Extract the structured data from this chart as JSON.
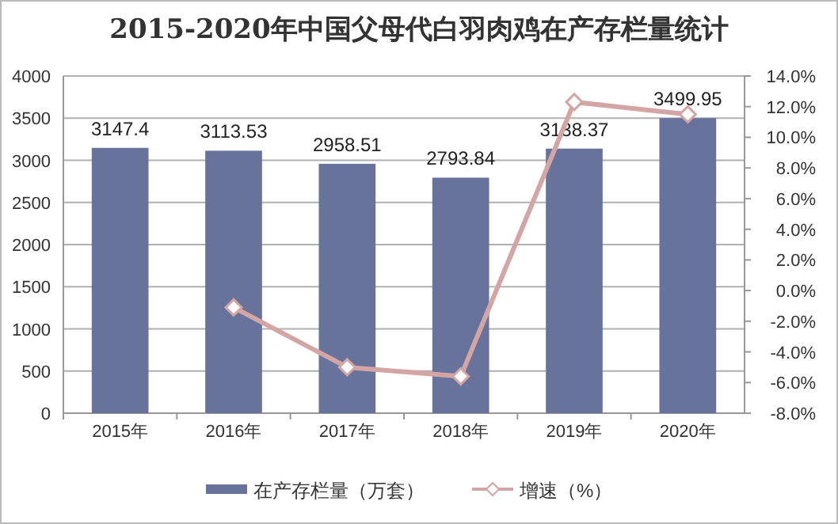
{
  "chart_data": {
    "type": "bar",
    "title": "2015-2020年中国父母代白羽肉鸡在产存栏量统计",
    "categories": [
      "2015年",
      "2016年",
      "2017年",
      "2018年",
      "2019年",
      "2020年"
    ],
    "series": [
      {
        "name": "在产存栏量（万套）",
        "color": "#67739a",
        "values": [
          3147.4,
          3113.53,
          2958.51,
          2793.84,
          3138.37,
          3499.95
        ],
        "value_labels": [
          "3147.4",
          "3113.53",
          "2958.51",
          "2793.84",
          "3138.37",
          "3499.95"
        ]
      },
      {
        "name": "增速（%）",
        "type": "line",
        "axis": "y2",
        "color": "#d4a5a5",
        "marker": "diamond",
        "values": [
          null,
          -1.1,
          -5.0,
          -5.6,
          12.3,
          11.5
        ]
      }
    ],
    "ylim": [
      0,
      4000
    ],
    "yticks": [
      0,
      500,
      1000,
      1500,
      2000,
      2500,
      3000,
      3500,
      4000
    ],
    "y2lim": [
      -8,
      14
    ],
    "y2ticks": [
      {
        "value": -8,
        "label": "-8.0%"
      },
      {
        "value": -6,
        "label": "-6.0%"
      },
      {
        "value": -4,
        "label": "-4.0%"
      },
      {
        "value": -2,
        "label": "-2.0%"
      },
      {
        "value": 0,
        "label": "0.0%"
      },
      {
        "value": 2,
        "label": "2.0%"
      },
      {
        "value": 4,
        "label": "4.0%"
      },
      {
        "value": 6,
        "label": "6.0%"
      },
      {
        "value": 8,
        "label": "8.0%"
      },
      {
        "value": 10,
        "label": "10.0%"
      },
      {
        "value": 12,
        "label": "12.0%"
      },
      {
        "value": 14,
        "label": "14.0%"
      }
    ],
    "grid": "y",
    "legend": "bottom"
  }
}
